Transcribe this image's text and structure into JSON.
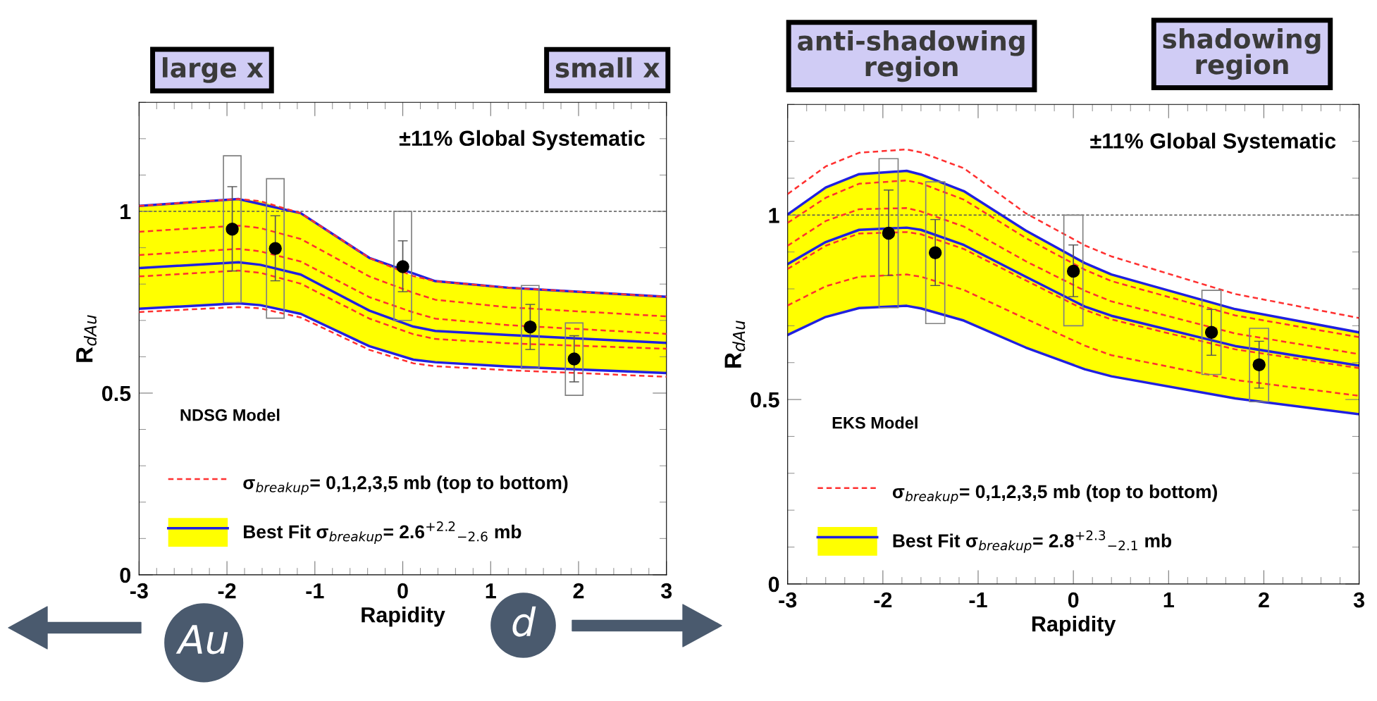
{
  "chart_data": [
    {
      "type": "line",
      "xlabel": "Rapidity",
      "ylabel": "R$_{dAu}$",
      "xlim": [
        -3,
        3
      ],
      "ylim": [
        0,
        1.3
      ],
      "xticks": [
        -3,
        -2,
        -1,
        0,
        1,
        2,
        3
      ],
      "yticks": [
        0,
        0.5,
        1
      ],
      "grid": false,
      "legend": "bottom left",
      "annotations": [
        "±11% Global Systematic",
        "NDSG Model",
        "large x",
        "small x",
        "Au",
        "d"
      ],
      "ref_lines": [
        {
          "axis": "y",
          "value": 1,
          "color": "#555555",
          "line_style": "dashed"
        }
      ],
      "series": [
        {
          "color": "#2020e0",
          "line_style": "solid",
          "x": [
            -3,
            -1.87,
            -1.16,
            -0.38,
            0.37,
            1.2,
            3
          ],
          "values": [
            1.015,
            1.034,
            0.995,
            0.872,
            0.808,
            0.79,
            0.765
          ]
        },
        {
          "color": "#2020e0",
          "line_style": "solid",
          "x": [
            -3,
            -1.87,
            -1.62,
            -1.16,
            -0.38,
            0.12,
            0.37,
            1.2,
            3
          ],
          "values": [
            0.732,
            0.747,
            0.742,
            0.718,
            0.629,
            0.592,
            0.585,
            0.573,
            0.555
          ]
        },
        {
          "name": "Best Fit σ$_{breakup}$= 2.6$^{+2.2}$$_{−2.6}$ mb",
          "color": "#2020e0",
          "line_style": "solid",
          "x": [
            -3,
            -1.87,
            -1.62,
            -1.16,
            -0.38,
            0.12,
            0.37,
            1.2,
            3
          ],
          "values": [
            0.844,
            0.86,
            0.853,
            0.826,
            0.727,
            0.683,
            0.671,
            0.66,
            0.638
          ],
          "lower": [
            0.732,
            0.747,
            0.742,
            0.718,
            0.629,
            0.592,
            0.585,
            0.573,
            0.555
          ],
          "upper": [
            1.015,
            1.034,
            1.028,
            0.995,
            0.872,
            0.822,
            0.808,
            0.79,
            0.765
          ]
        },
        {
          "name": "σ$_{breakup}$= 0,1,2,3,5 mb (top to bottom)",
          "color": "#ff3030",
          "line_style": "dashed",
          "x": [
            -3,
            -1.87,
            -1.62,
            -1.16,
            -0.38,
            0.12,
            0.37,
            1.2,
            3
          ],
          "values": [
            1.015,
            1.034,
            1.028,
            0.995,
            0.872,
            0.822,
            0.808,
            0.79,
            0.765
          ]
        },
        {
          "color": "#ff3030",
          "line_style": "dashed",
          "x": [
            -3,
            -1.87,
            -1.62,
            -1.16,
            -0.38,
            0.12,
            0.37,
            1.2,
            3
          ],
          "values": [
            0.944,
            0.961,
            0.954,
            0.924,
            0.821,
            0.776,
            0.757,
            0.736,
            0.711
          ]
        },
        {
          "color": "#ff3030",
          "line_style": "dashed",
          "x": [
            -3,
            -1.87,
            -1.62,
            -1.16,
            -0.38,
            0.12,
            0.37,
            1.2,
            3
          ],
          "values": [
            0.88,
            0.897,
            0.89,
            0.862,
            0.764,
            0.722,
            0.705,
            0.687,
            0.663
          ]
        },
        {
          "color": "#ff3030",
          "line_style": "dashed",
          "x": [
            -3,
            -1.87,
            -1.62,
            -1.16,
            -0.38,
            0.12,
            0.37,
            1.2,
            3
          ],
          "values": [
            0.821,
            0.837,
            0.831,
            0.801,
            0.705,
            0.662,
            0.649,
            0.637,
            0.622
          ]
        },
        {
          "color": "#ff3030",
          "line_style": "dashed",
          "x": [
            -3,
            -1.87,
            -1.62,
            -1.16,
            -0.38,
            0.12,
            0.37,
            1.2,
            3
          ],
          "values": [
            0.723,
            0.737,
            0.733,
            0.708,
            0.619,
            0.582,
            0.574,
            0.563,
            0.545
          ]
        },
        {
          "type": "bar",
          "color": "#808080",
          "x": [
            -1.94,
            -1.45,
            0,
            1.45,
            1.95
          ],
          "base": [
            0.749,
            0.706,
            0.7,
            0.568,
            0.494
          ],
          "values": [
            0.404,
            0.384,
            0.3,
            0.228,
            0.199
          ]
        },
        {
          "type": "scatter",
          "color": "#000000",
          "marker": "circle",
          "x": [
            -1.94,
            -1.45,
            0,
            1.45,
            1.95
          ],
          "values": [
            0.951,
            0.898,
            0.848,
            0.682,
            0.594
          ],
          "errors": [
            [
              0.836,
              1.068
            ],
            [
              0.809,
              0.988
            ],
            [
              0.779,
              0.919
            ],
            [
              0.62,
              0.744
            ],
            [
              0.531,
              0.658
            ]
          ]
        }
      ]
    },
    {
      "type": "line",
      "xlabel": "Rapidity",
      "ylabel": "R$_{dAu}$",
      "xlim": [
        -3,
        3
      ],
      "ylim": [
        0,
        1.3
      ],
      "xticks": [
        -3,
        -2,
        -1,
        0,
        1,
        2,
        3
      ],
      "yticks": [
        0,
        0.5,
        1
      ],
      "grid": false,
      "legend": "bottom left",
      "annotations": [
        "±11% Global Systematic",
        "EKS Model",
        "anti-shadowing\nregion",
        "shadowing\nregion"
      ],
      "ref_lines": [
        {
          "axis": "y",
          "value": 1,
          "color": "#555555",
          "line_style": "dashed"
        }
      ],
      "series": [
        {
          "color": "#2020e0",
          "line_style": "solid",
          "x": [
            -3,
            -2.6,
            -2.25,
            -1.75,
            -1.6,
            -1.15,
            -0.5,
            0.12,
            0.4,
            1.7,
            3
          ],
          "values": [
            1.002,
            1.075,
            1.111,
            1.12,
            1.11,
            1.065,
            0.958,
            0.87,
            0.839,
            0.745,
            0.682
          ]
        },
        {
          "color": "#2020e0",
          "line_style": "solid",
          "x": [
            -3,
            -2.6,
            -2.25,
            -1.75,
            -1.6,
            -1.15,
            -0.5,
            0.12,
            0.4,
            1.7,
            3
          ],
          "values": [
            0.675,
            0.724,
            0.748,
            0.754,
            0.747,
            0.714,
            0.641,
            0.582,
            0.563,
            0.503,
            0.46
          ]
        },
        {
          "name": "Best Fit σ$_{breakup}$= 2.8$^{+2.3}$$_{−2.1}$ mb",
          "color": "#2020e0",
          "line_style": "solid",
          "x": [
            -3,
            -2.6,
            -2.25,
            -1.75,
            -1.6,
            -1.15,
            -0.5,
            0.12,
            0.4,
            1.7,
            3
          ],
          "values": [
            0.867,
            0.927,
            0.96,
            0.966,
            0.96,
            0.919,
            0.833,
            0.752,
            0.727,
            0.645,
            0.592
          ],
          "lower": [
            0.675,
            0.724,
            0.748,
            0.754,
            0.747,
            0.714,
            0.641,
            0.582,
            0.563,
            0.503,
            0.46
          ],
          "upper": [
            1.002,
            1.075,
            1.111,
            1.12,
            1.11,
            1.065,
            0.958,
            0.87,
            0.839,
            0.745,
            0.682
          ]
        },
        {
          "name": "σ$_{breakup}$= 0,1,2,3,5 mb (top to bottom)",
          "color": "#ff3030",
          "line_style": "dashed",
          "x": [
            -3,
            -2.6,
            -2.25,
            -1.75,
            -1.6,
            -1.15,
            -0.5,
            0.12,
            0.4,
            1.7,
            3
          ],
          "values": [
            1.057,
            1.132,
            1.169,
            1.178,
            1.17,
            1.127,
            1.005,
            0.918,
            0.888,
            0.786,
            0.721
          ]
        },
        {
          "color": "#ff3030",
          "line_style": "dashed",
          "x": [
            -3,
            -2.6,
            -2.25,
            -1.75,
            -1.6,
            -1.15,
            -0.5,
            0.12,
            0.4,
            1.7,
            3
          ],
          "values": [
            0.979,
            1.047,
            1.085,
            1.094,
            1.086,
            1.042,
            0.938,
            0.852,
            0.821,
            0.728,
            0.669
          ]
        },
        {
          "color": "#ff3030",
          "line_style": "dashed",
          "x": [
            -3,
            -2.6,
            -2.25,
            -1.75,
            -1.6,
            -1.15,
            -0.5,
            0.12,
            0.4,
            1.7,
            3
          ],
          "values": [
            0.917,
            0.984,
            1.016,
            1.019,
            1.01,
            0.969,
            0.875,
            0.795,
            0.766,
            0.679,
            0.623
          ]
        },
        {
          "color": "#ff3030",
          "line_style": "dashed",
          "x": [
            -3,
            -2.6,
            -2.25,
            -1.75,
            -1.6,
            -1.15,
            -0.5,
            0.12,
            0.4,
            1.7,
            3
          ],
          "values": [
            0.854,
            0.917,
            0.95,
            0.954,
            0.948,
            0.908,
            0.823,
            0.743,
            0.717,
            0.636,
            0.585
          ]
        },
        {
          "color": "#ff3030",
          "line_style": "dashed",
          "x": [
            -3,
            -2.6,
            -2.25,
            -1.75,
            -1.6,
            -1.15,
            -0.5,
            0.12,
            0.4,
            1.7,
            3
          ],
          "values": [
            0.755,
            0.807,
            0.833,
            0.839,
            0.833,
            0.797,
            0.719,
            0.646,
            0.62,
            0.553,
            0.51
          ]
        },
        {
          "type": "bar",
          "color": "#808080",
          "x": [
            -1.94,
            -1.45,
            0,
            1.45,
            1.95
          ],
          "base": [
            0.749,
            0.706,
            0.7,
            0.568,
            0.494
          ],
          "values": [
            0.404,
            0.384,
            0.3,
            0.228,
            0.199
          ]
        },
        {
          "type": "scatter",
          "color": "#000000",
          "marker": "circle",
          "x": [
            -1.94,
            -1.45,
            0,
            1.45,
            1.95
          ],
          "values": [
            0.951,
            0.898,
            0.848,
            0.682,
            0.594
          ],
          "errors": [
            [
              0.836,
              1.068
            ],
            [
              0.809,
              0.988
            ],
            [
              0.779,
              0.919
            ],
            [
              0.62,
              0.744
            ],
            [
              0.531,
              0.658
            ]
          ]
        }
      ]
    }
  ]
}
